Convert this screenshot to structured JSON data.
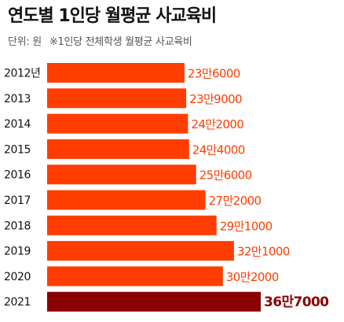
{
  "header": {
    "title": "연도별 1인당 월평균 사교육비",
    "unit": "단위: 원",
    "note": "※1인당 전체학생 월평균 사교육비"
  },
  "colors": {
    "bar": "#ff3d00",
    "bar_highlight": "#8b0000",
    "label": "#ff3d00",
    "label_highlight": "#8b0000"
  },
  "chart_data": {
    "type": "bar",
    "orientation": "horizontal",
    "title": "연도별 1인당 월평균 사교육비",
    "subtitle": "단위: 원  ※1인당 전체학생 월평균 사교육비",
    "categories": [
      "2012년",
      "2013",
      "2014",
      "2015",
      "2016",
      "2017",
      "2018",
      "2019",
      "2020",
      "2021"
    ],
    "values": [
      236000,
      239000,
      242000,
      244000,
      256000,
      272000,
      291000,
      321000,
      302000,
      367000
    ],
    "value_labels": [
      "23만6000",
      "23만9000",
      "24만2000",
      "24만4000",
      "25만6000",
      "27만2000",
      "29만1000",
      "32만1000",
      "30만2000",
      "36만7000"
    ],
    "highlight_index": 9,
    "xlim": [
      0,
      367000
    ],
    "grid": false,
    "legend": "none"
  }
}
